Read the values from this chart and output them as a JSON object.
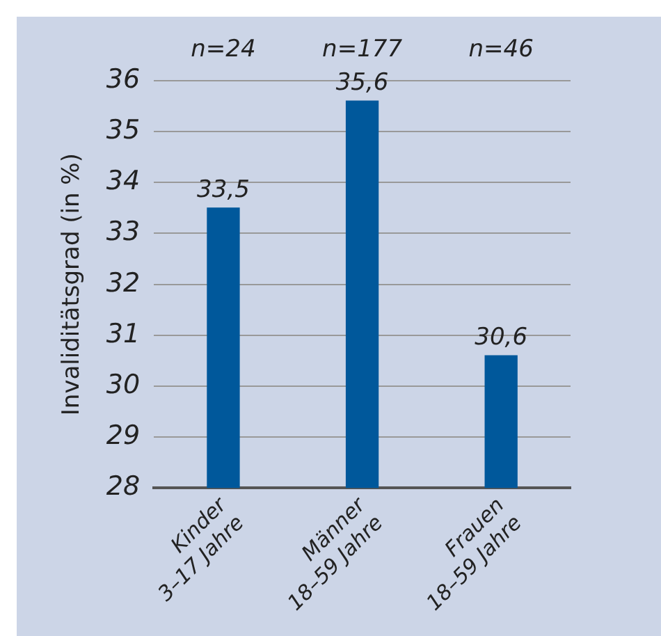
{
  "chart_data": {
    "type": "bar",
    "ylabel": "Invaliditätsgrad (in %)",
    "categories": [
      "Kinder\n3–17 Jahre",
      "Männer\n18–59 Jahre",
      "Frauen\n18–59 Jahre"
    ],
    "values": [
      33.5,
      35.6,
      30.6
    ],
    "color": "#00589b",
    "value_labels": [
      "33,5",
      "35,6",
      "30,6"
    ],
    "ylim": [
      28,
      36
    ],
    "yticks": [
      28,
      29,
      30,
      31,
      32,
      33,
      34,
      35,
      36
    ],
    "grid": "y",
    "legend": false,
    "annotations": [
      "n=24",
      "n=177",
      "n=46"
    ]
  }
}
